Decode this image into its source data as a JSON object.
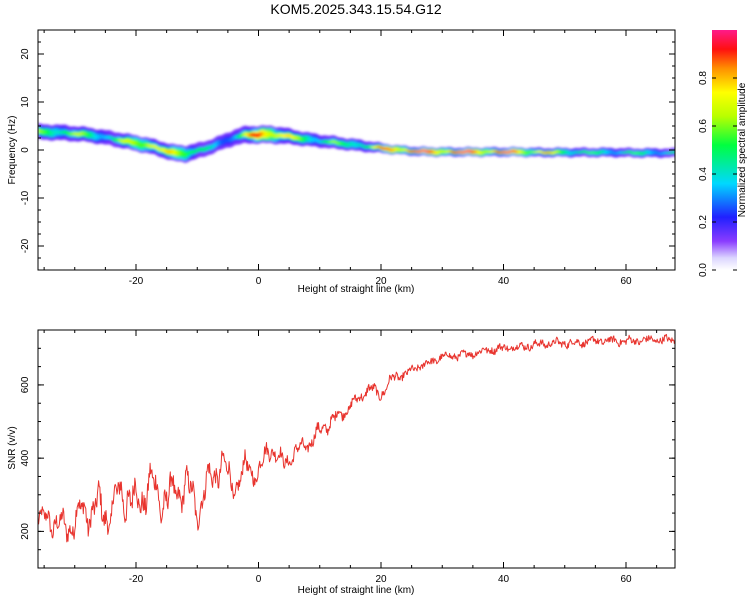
{
  "title": "KOM5.2025.343.15.54.G12",
  "colors": {
    "snr_line": "#e8342e",
    "axis": "#000000",
    "background": "#ffffff"
  },
  "chart_data": [
    {
      "type": "heatmap",
      "name": "spectrogram",
      "xlabel": "Height of straight line (km)",
      "ylabel": "Frequency (Hz)",
      "xlim": [
        -36,
        68
      ],
      "ylim": [
        -25,
        25
      ],
      "xticks": [
        -20,
        0,
        20,
        40,
        60
      ],
      "yticks": [
        -20,
        -10,
        0,
        10,
        20
      ],
      "colorbar": {
        "label": "Normalized spectral amplitude",
        "range": [
          0,
          1
        ],
        "ticks": [
          "0.0",
          "0.2",
          "0.4",
          "0.6",
          "0.8"
        ],
        "tick_values": [
          0,
          0.2,
          0.4,
          0.6,
          0.8
        ],
        "colormap": "rainbow"
      },
      "ridge": {
        "x": [
          -36,
          -32,
          -28,
          -24,
          -20,
          -18,
          -16,
          -14,
          -12,
          -10,
          -8,
          -6,
          -4,
          -2,
          0,
          2,
          4,
          6,
          8,
          10,
          12,
          14,
          16,
          18,
          20,
          22,
          24,
          26,
          30,
          34,
          38,
          42,
          46,
          50,
          54,
          58,
          62,
          66,
          68
        ],
        "freq": [
          3.8,
          3.6,
          3.2,
          2.4,
          1.4,
          0.9,
          0.2,
          -0.6,
          -0.8,
          -0.2,
          0.6,
          1.6,
          2.6,
          3.2,
          3.2,
          3.2,
          3.0,
          2.6,
          2.2,
          1.9,
          1.6,
          1.3,
          1.0,
          0.7,
          0.4,
          0.1,
          -0.1,
          -0.3,
          -0.4,
          -0.4,
          -0.4,
          -0.4,
          -0.5,
          -0.5,
          -0.5,
          -0.5,
          -0.6,
          -0.6,
          -0.6
        ],
        "amplitude": [
          0.5,
          0.55,
          0.5,
          0.4,
          0.7,
          0.8,
          0.55,
          0.7,
          0.72,
          0.45,
          0.35,
          0.3,
          0.4,
          0.6,
          0.85,
          0.9,
          0.7,
          0.55,
          0.5,
          0.45,
          0.5,
          0.45,
          0.55,
          0.5,
          0.7,
          0.95,
          0.9,
          0.85,
          0.9,
          0.88,
          0.85,
          0.82,
          0.7,
          0.55,
          0.45,
          0.42,
          0.45,
          0.4,
          0.4
        ],
        "width": [
          1.6,
          1.6,
          1.5,
          1.5,
          1.6,
          1.6,
          1.6,
          1.7,
          1.7,
          1.6,
          1.5,
          1.5,
          1.6,
          1.8,
          1.8,
          1.8,
          1.7,
          1.5,
          1.4,
          1.3,
          1.3,
          1.2,
          1.2,
          1.1,
          1.0,
          0.9,
          0.9,
          0.9,
          0.9,
          0.9,
          0.9,
          0.9,
          0.9,
          0.9,
          0.9,
          0.9,
          0.9,
          0.9,
          0.9
        ]
      }
    },
    {
      "type": "line",
      "name": "snr",
      "xlabel": "Height of straight line (km)",
      "ylabel": "SNR (v/v)",
      "xlim": [
        -36,
        68
      ],
      "ylim": [
        100,
        750
      ],
      "xticks": [
        -20,
        0,
        20,
        40,
        60
      ],
      "yticks": [
        200,
        400,
        600
      ],
      "series": [
        {
          "name": "SNR",
          "x": [
            -36,
            -34,
            -32,
            -30,
            -28,
            -26,
            -24,
            -22,
            -20,
            -18,
            -16,
            -14,
            -12,
            -10,
            -8,
            -6,
            -4,
            -2,
            0,
            2,
            4,
            6,
            8,
            10,
            12,
            14,
            16,
            18,
            20,
            22,
            24,
            26,
            28,
            30,
            34,
            38,
            42,
            46,
            50,
            54,
            58,
            62,
            66,
            68
          ],
          "values": [
            230,
            230,
            200,
            240,
            270,
            250,
            240,
            320,
            280,
            330,
            280,
            290,
            340,
            270,
            330,
            380,
            320,
            380,
            360,
            430,
            380,
            420,
            440,
            470,
            500,
            530,
            560,
            590,
            570,
            620,
            630,
            650,
            660,
            675,
            685,
            695,
            705,
            710,
            715,
            718,
            720,
            722,
            722,
            722
          ],
          "amplitude": [
            25,
            50,
            55,
            60,
            70,
            75,
            80,
            85,
            85,
            75,
            75,
            70,
            65,
            65,
            60,
            55,
            50,
            45,
            40,
            35,
            30,
            25,
            25,
            25,
            22,
            20,
            18,
            18,
            16,
            14,
            12,
            10,
            10,
            10,
            10,
            10,
            10,
            10,
            10,
            10,
            10,
            10,
            10,
            10
          ]
        }
      ]
    }
  ]
}
